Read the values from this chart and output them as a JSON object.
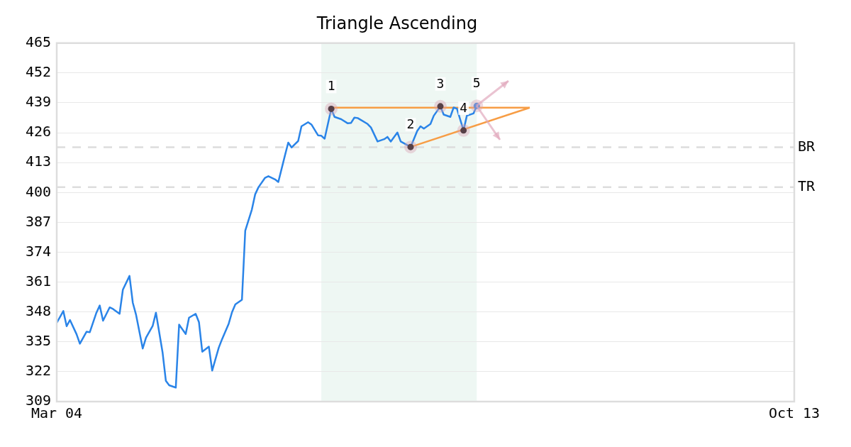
{
  "chart_data": {
    "type": "line",
    "title": "Triangle Ascending",
    "xlim": [
      "--03-04",
      "--10-13"
    ],
    "xticks": [
      {
        "value": "--03-04",
        "label": "Mar 04"
      },
      {
        "value": "--10-13",
        "label": "Oct 13"
      }
    ],
    "ylim": [
      309,
      465
    ],
    "yticks": [
      309,
      322,
      335,
      348,
      361,
      374,
      387,
      400,
      413,
      426,
      439,
      452,
      465
    ],
    "grid": "y",
    "legend": false,
    "series": [
      {
        "color": "#2a84e8",
        "marker": "none",
        "x": [
          "--03-04",
          "--03-06",
          "--03-07",
          "--03-08",
          "--03-10",
          "--03-11",
          "--03-13",
          "--03-14",
          "--03-16",
          "--03-17",
          "--03-18",
          "--03-20",
          "--03-21",
          "--03-23",
          "--03-24",
          "--03-26",
          "--03-27",
          "--03-28",
          "--03-30",
          "--03-31",
          "--04-02",
          "--04-03",
          "--04-05",
          "--04-06",
          "--04-07",
          "--04-09",
          "--04-10",
          "--04-12",
          "--04-13",
          "--04-15",
          "--04-16",
          "--04-17",
          "--04-19",
          "--04-20",
          "--04-22",
          "--04-23",
          "--04-25",
          "--04-26",
          "--04-27",
          "--04-29",
          "--04-30",
          "--05-02",
          "--05-03",
          "--05-04",
          "--05-06",
          "--05-07",
          "--05-09",
          "--05-10",
          "--05-12",
          "--05-13",
          "--05-14",
          "--05-16",
          "--05-17",
          "--05-19",
          "--05-20",
          "--05-22",
          "--05-23",
          "--05-24",
          "--05-26",
          "--05-27",
          "--05-29",
          "--05-31",
          "--06-01",
          "--06-02",
          "--06-03",
          "--06-06",
          "--06-07",
          "--06-09",
          "--06-11",
          "--06-12",
          "--06-13",
          "--06-15",
          "--06-16",
          "--06-19",
          "--06-21",
          "--06-22",
          "--06-23",
          "--06-25",
          "--06-26",
          "--06-28",
          "--06-29",
          "--07-01",
          "--07-02",
          "--07-03",
          "--07-05",
          "--07-06",
          "--07-08",
          "--07-09"
        ],
        "values": [
          343.3,
          348.4,
          341.8,
          344.5,
          338.3,
          334.2,
          339.4,
          339.2,
          347.7,
          350.8,
          344.2,
          350.0,
          349.3,
          347.2,
          357.7,
          363.7,
          352.0,
          346.7,
          332.1,
          336.8,
          341.9,
          347.7,
          330.4,
          318.0,
          316.1,
          315.1,
          342.5,
          338.4,
          345.5,
          347.2,
          343.6,
          330.7,
          332.9,
          322.5,
          332.5,
          336.2,
          342.9,
          347.9,
          351.3,
          353.3,
          383.4,
          392.6,
          399.2,
          402.3,
          406.4,
          407.1,
          405.7,
          404.6,
          416.1,
          421.7,
          419.6,
          422.4,
          428.8,
          430.6,
          429.6,
          424.9,
          424.7,
          423.4,
          436.4,
          432.9,
          431.9,
          430.1,
          430.3,
          432.6,
          432.4,
          429.8,
          428.3,
          422.2,
          423.2,
          424.2,
          422.2,
          426.1,
          422.2,
          419.8,
          426.8,
          428.8,
          427.8,
          429.8,
          433.4,
          437.5,
          433.9,
          432.9,
          437.0,
          436.5,
          427.0,
          433.4,
          434.4,
          437.7
        ]
      },
      {
        "type": "line",
        "color": "#f79d45",
        "marker": "none",
        "x": [
          "--05-26",
          "--07-25"
        ],
        "values": [
          436.9,
          436.9
        ]
      },
      {
        "type": "line",
        "color": "#f79d45",
        "marker": "none",
        "x": [
          "--06-19",
          "--07-25"
        ],
        "values": [
          419.8,
          436.9
        ]
      },
      {
        "type": "scatter",
        "marker": "circle",
        "colors": [
          "#000000",
          "#000000",
          "#000000",
          "#000000",
          "#2a84e8"
        ],
        "x": [
          "--05-26",
          "--06-19",
          "--06-28",
          "--07-05",
          "--07-09"
        ],
        "values": [
          436.4,
          419.8,
          437.5,
          427.0,
          437.7
        ]
      }
    ],
    "annotations": [
      {
        "text": "1",
        "x": "--05-26",
        "y": 436.4
      },
      {
        "text": "2",
        "x": "--06-19",
        "y": 419.8
      },
      {
        "text": "3",
        "x": "--06-28",
        "y": 437.5
      },
      {
        "text": "4",
        "x": "--07-05",
        "y": 427.0
      },
      {
        "text": "5",
        "x": "--07-09",
        "y": 437.7
      }
    ],
    "ref_lines": [
      {
        "axis": "y",
        "value": 419.7,
        "label": "BR",
        "color": "#dddddd",
        "line_style": "dashed"
      },
      {
        "axis": "y",
        "value": 402.3,
        "label": "TR",
        "color": "#dddddd",
        "line_style": "dashed"
      }
    ],
    "bands": [
      {
        "axis": "x",
        "from": "--05-23",
        "to": "--07-09",
        "color": "#eef7f3"
      }
    ]
  }
}
